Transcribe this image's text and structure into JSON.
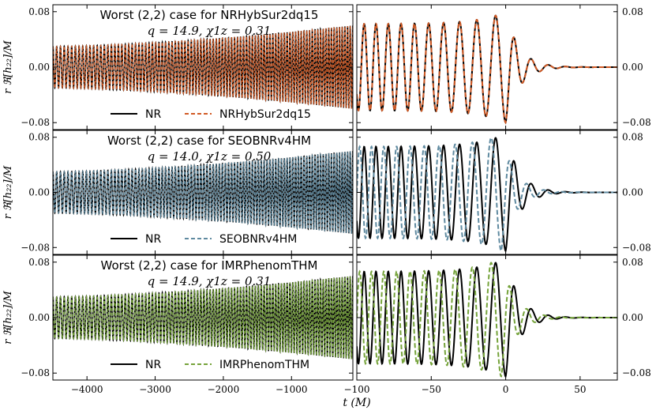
{
  "axis_label": {
    "x": "t (M)",
    "y": "r ℜ[h₂₂]/M"
  },
  "colors": {
    "nr": "#000000",
    "NRHybSur2dq15": "#d15a25",
    "SEOBNRv4HM": "#5f8aa0",
    "IMRPhenomTHM": "#75a33a"
  },
  "chart_data": [
    {
      "type": "line",
      "panel": "left",
      "title": "Worst (2,2) case for NRHybSur2dq15",
      "subtitle": "q = 14.9, χ1z = 0.31",
      "xlabel": "t (M)",
      "ylabel": "r ℜ[h₂₂]/M",
      "xlim": [
        -4500,
        -100
      ],
      "ylim": [
        -0.09,
        0.09
      ],
      "yticks": [
        "0.08",
        "0.00",
        "−0.08"
      ],
      "ytick_values": [
        0.08,
        0.0,
        -0.08
      ],
      "legend": {
        "placement": "lower-center",
        "entries": [
          "NR",
          "NRHybSur2dq15"
        ]
      },
      "series": [
        {
          "name": "NR",
          "style": "solid",
          "color": "#000000",
          "amplitude_start": 0.03,
          "amplitude_end": 0.06,
          "cycles": 96
        },
        {
          "name": "NRHybSur2dq15",
          "style": "dashed",
          "color": "#d15a25",
          "amplitude_start": 0.03,
          "amplitude_end": 0.06,
          "cycles": 96
        }
      ]
    },
    {
      "type": "line",
      "panel": "right",
      "xlim": [
        -100,
        75
      ],
      "ylim": [
        -0.09,
        0.09
      ],
      "yticks": [
        "0.08",
        "0.00",
        "−0.08"
      ],
      "ytick_values": [
        0.08,
        0.0,
        -0.08
      ],
      "series": [
        {
          "name": "NR",
          "style": "solid",
          "color": "#000000",
          "peak_t": 0,
          "peak_amplitude": 0.08
        },
        {
          "name": "NRHybSur2dq15",
          "style": "dashed",
          "color": "#d15a25",
          "peak_t": 0,
          "peak_amplitude": 0.08
        }
      ]
    },
    {
      "type": "line",
      "panel": "left",
      "title": "Worst (2,2) case for SEOBNRv4HM",
      "subtitle": "q = 14.0, χ1z = 0.50",
      "xlabel": "t (M)",
      "ylabel": "r ℜ[h₂₂]/M",
      "xlim": [
        -4500,
        -100
      ],
      "ylim": [
        -0.09,
        0.09
      ],
      "yticks": [
        "0.08",
        "0.00",
        "−0.08"
      ],
      "ytick_values": [
        0.08,
        0.0,
        -0.08
      ],
      "legend": {
        "placement": "lower-center",
        "entries": [
          "NR",
          "SEOBNRv4HM"
        ]
      },
      "series": [
        {
          "name": "NR",
          "style": "solid",
          "color": "#000000",
          "amplitude_start": 0.03,
          "amplitude_end": 0.06,
          "cycles": 96
        },
        {
          "name": "SEOBNRv4HM",
          "style": "dashed",
          "color": "#5f8aa0",
          "amplitude_start": 0.03,
          "amplitude_end": 0.06,
          "cycles": 96
        }
      ]
    },
    {
      "type": "line",
      "panel": "right",
      "xlim": [
        -100,
        75
      ],
      "ylim": [
        -0.09,
        0.09
      ],
      "yticks": [
        "0.08",
        "0.00",
        "−0.08"
      ],
      "ytick_values": [
        0.08,
        0.0,
        -0.08
      ],
      "series": [
        {
          "name": "NR",
          "style": "solid",
          "color": "#000000",
          "peak_t": 0,
          "peak_amplitude": 0.085
        },
        {
          "name": "SEOBNRv4HM",
          "style": "dashed",
          "color": "#5f8aa0",
          "peak_t": -3,
          "peak_amplitude": 0.085
        }
      ]
    },
    {
      "type": "line",
      "panel": "left",
      "title": "Worst (2,2) case for IMRPhenomTHM",
      "subtitle": "q = 14.9, χ1z = 0.31",
      "xlabel": "t (M)",
      "ylabel": "r ℜ[h₂₂]/M",
      "xlim": [
        -4500,
        -100
      ],
      "ylim": [
        -0.09,
        0.09
      ],
      "yticks": [
        "0.08",
        "0.00",
        "−0.08"
      ],
      "ytick_values": [
        0.08,
        0.0,
        -0.08
      ],
      "xticks": [
        "−4000",
        "−3000",
        "−2000",
        "−1000"
      ],
      "xtick_values": [
        -4000,
        -3000,
        -2000,
        -1000
      ],
      "legend": {
        "placement": "lower-center",
        "entries": [
          "NR",
          "IMRPhenomTHM"
        ]
      },
      "series": [
        {
          "name": "NR",
          "style": "solid",
          "color": "#000000",
          "amplitude_start": 0.03,
          "amplitude_end": 0.06,
          "cycles": 96
        },
        {
          "name": "IMRPhenomTHM",
          "style": "dashed",
          "color": "#75a33a",
          "amplitude_start": 0.03,
          "amplitude_end": 0.06,
          "cycles": 96
        }
      ]
    },
    {
      "type": "line",
      "panel": "right",
      "xlim": [
        -100,
        75
      ],
      "ylim": [
        -0.09,
        0.09
      ],
      "yticks": [
        "0.08",
        "0.00",
        "−0.08"
      ],
      "ytick_values": [
        0.08,
        0.0,
        -0.08
      ],
      "xticks": [
        "−100",
        "−50",
        "0",
        "50"
      ],
      "xtick_values": [
        -100,
        -50,
        0,
        50
      ],
      "series": [
        {
          "name": "NR",
          "style": "solid",
          "color": "#000000",
          "peak_t": 0,
          "peak_amplitude": 0.085
        },
        {
          "name": "IMRPhenomTHM",
          "style": "dashed",
          "color": "#75a33a",
          "peak_t": -3,
          "peak_amplitude": 0.085
        }
      ]
    }
  ]
}
